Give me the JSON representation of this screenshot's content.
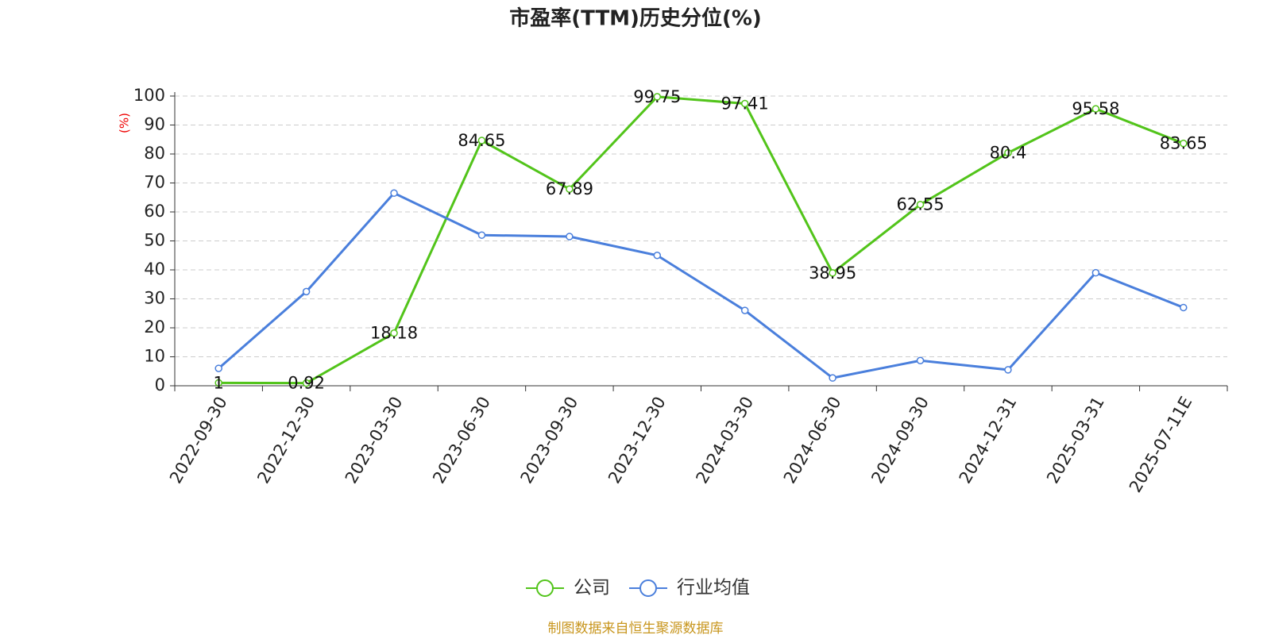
{
  "chart_data": {
    "type": "line",
    "title": "市盈率(TTM)历史分位(%)",
    "y_label": "(%)",
    "source": "制图数据来自恒生聚源数据库",
    "categories": [
      "2022-09-30",
      "2022-12-30",
      "2023-03-30",
      "2023-06-30",
      "2023-09-30",
      "2023-12-30",
      "2024-03-30",
      "2024-06-30",
      "2024-09-30",
      "2024-12-31",
      "2025-03-31",
      "2025-07-11E"
    ],
    "series": [
      {
        "name": "公司",
        "color": "#52c41a",
        "show_labels": true,
        "values": [
          1,
          0.92,
          18.18,
          84.65,
          67.89,
          99.75,
          97.41,
          38.95,
          62.55,
          80.4,
          95.58,
          83.65
        ]
      },
      {
        "name": "行业均值",
        "color": "#4a7fdc",
        "show_labels": false,
        "values": [
          6,
          32.5,
          66.5,
          52,
          51.5,
          45,
          26,
          2.7,
          8.7,
          5.5,
          39,
          27
        ]
      }
    ],
    "ylim": [
      0,
      100
    ],
    "yticks": [
      0,
      10,
      20,
      30,
      40,
      50,
      60,
      70,
      80,
      90,
      100
    ],
    "grid": true
  }
}
